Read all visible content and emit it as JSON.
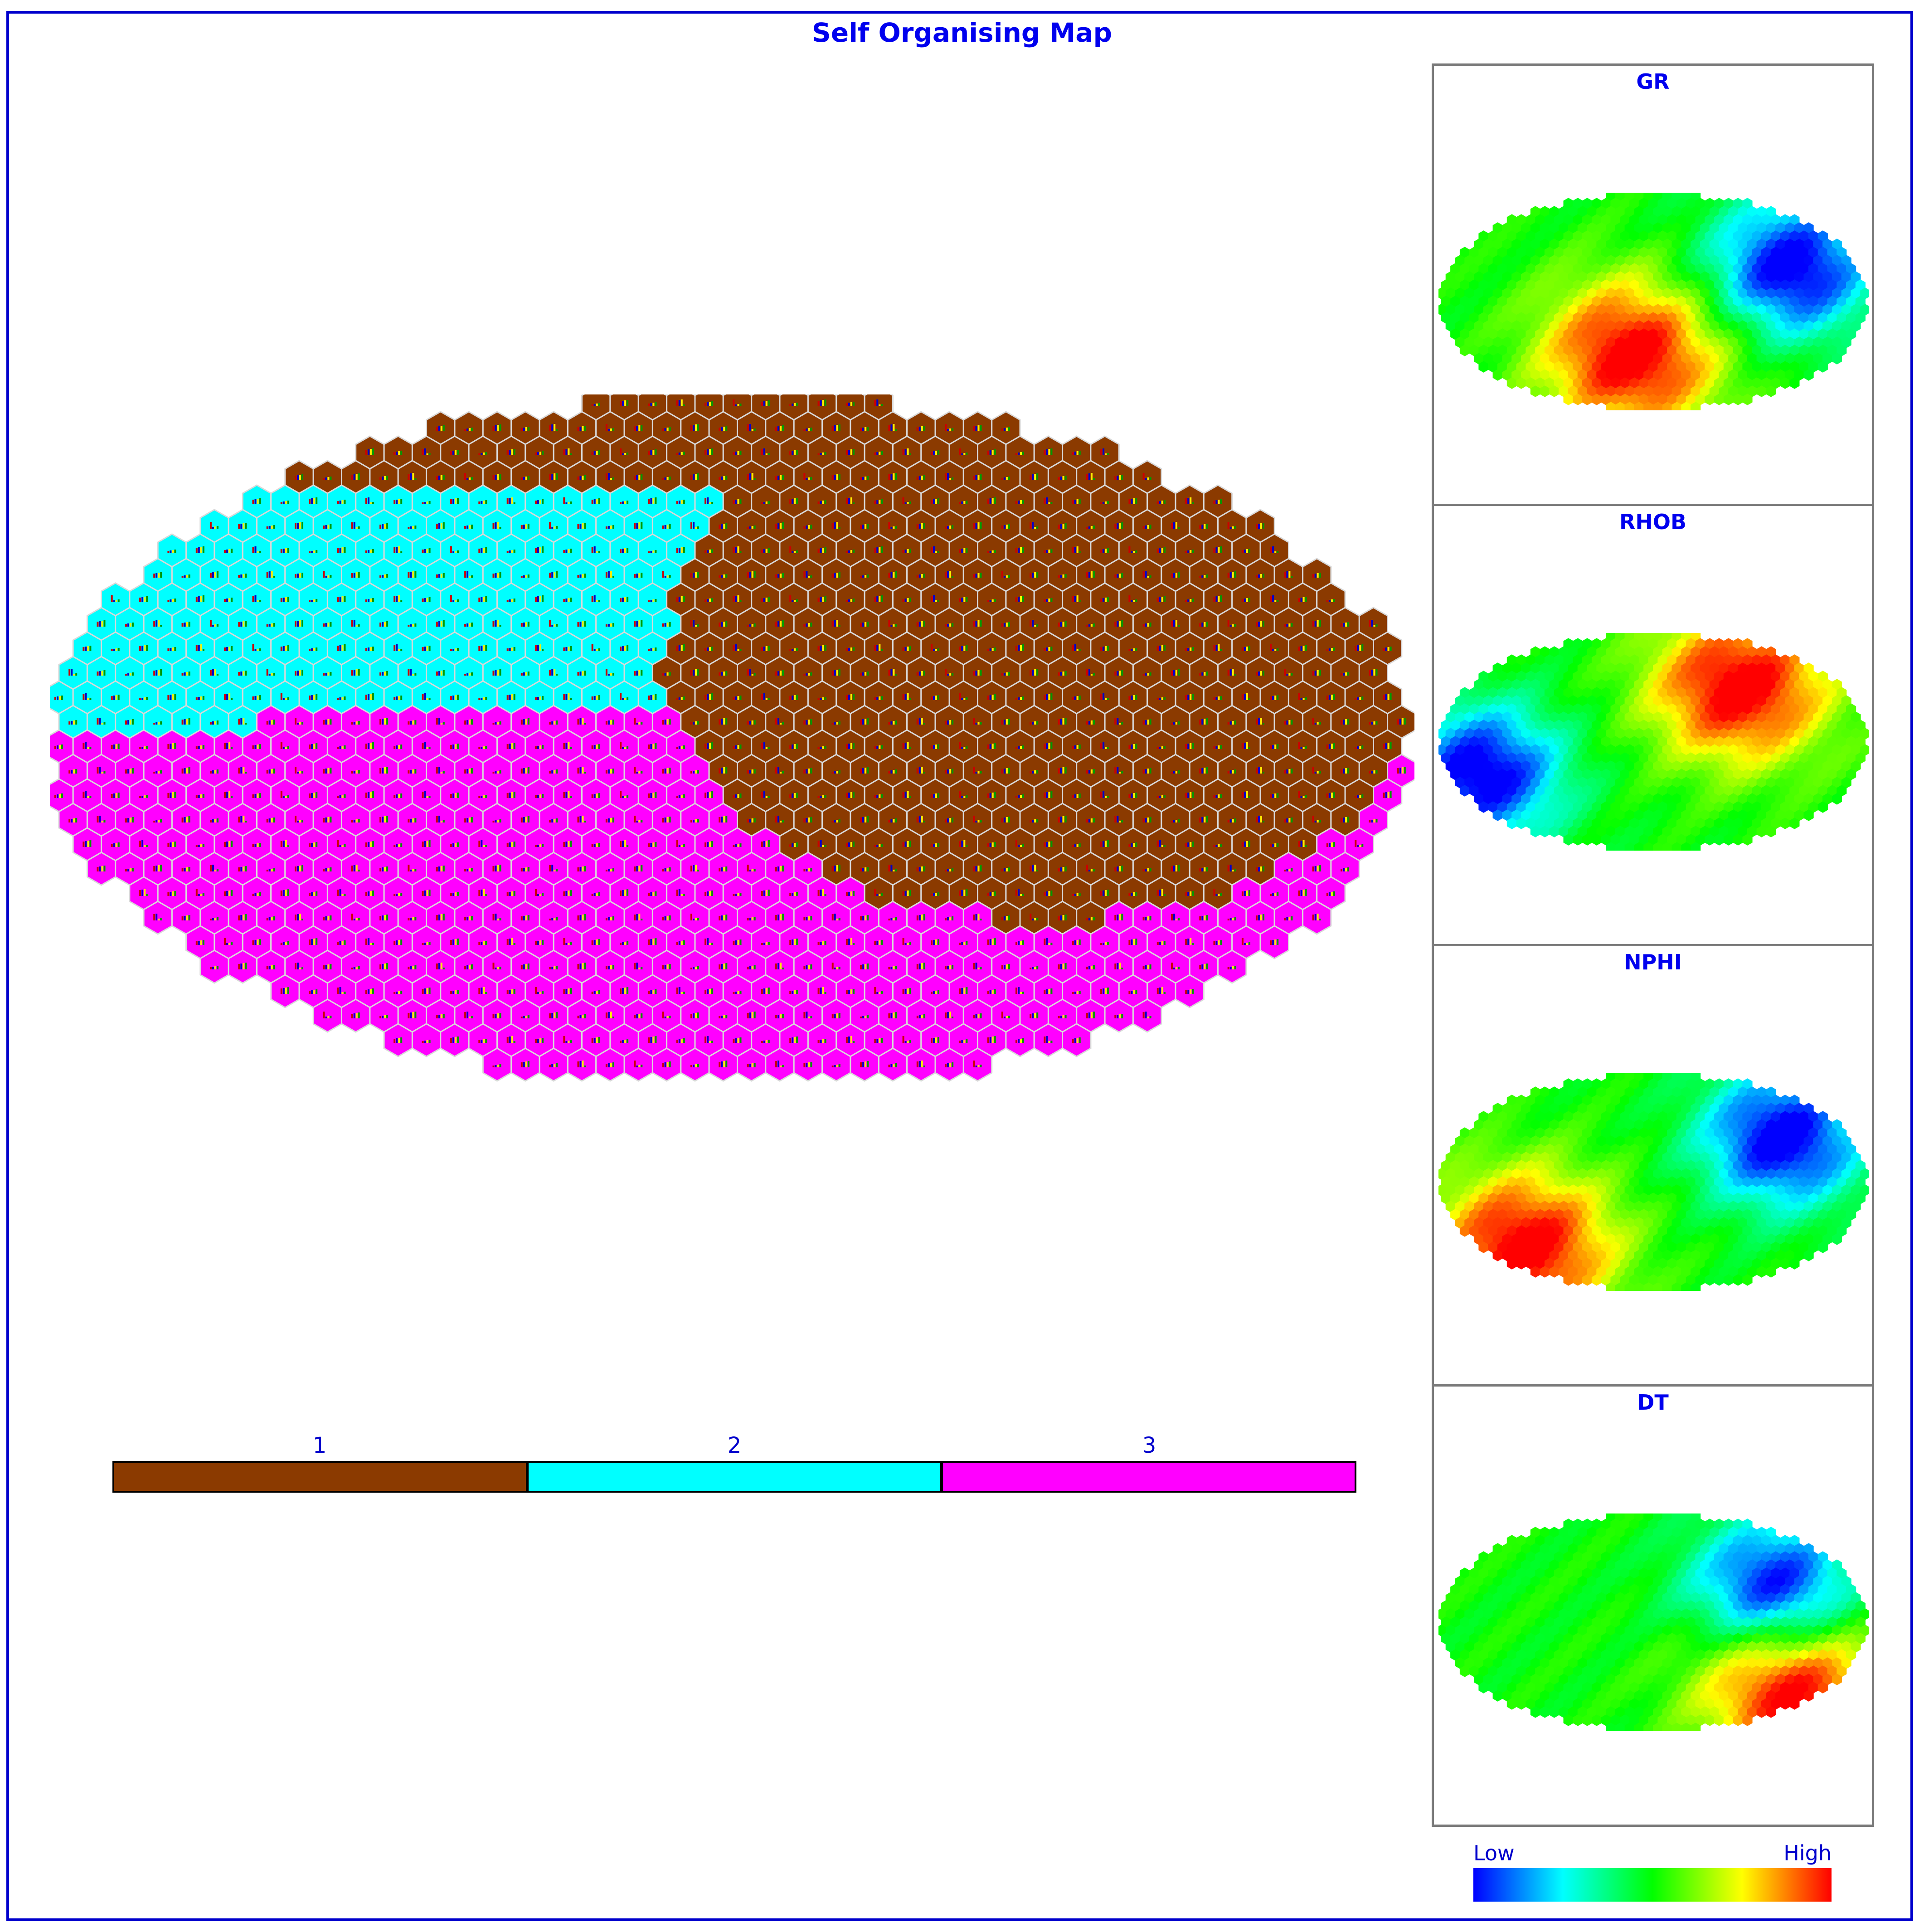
{
  "title": "Self Organising Map",
  "chart_data": {
    "type": "heatmap",
    "title": "Self Organising Map",
    "main_map": {
      "kind": "cluster-map",
      "clusters": [
        {
          "label": "1",
          "color": "#8b3a00"
        },
        {
          "label": "2",
          "color": "#00ffff"
        },
        {
          "label": "3",
          "color": "#ff00ff"
        }
      ]
    },
    "component_planes": [
      {
        "name": "GR",
        "high_center": [
          0.45,
          0.75
        ],
        "low_center": [
          0.82,
          0.35
        ]
      },
      {
        "name": "RHOB",
        "high_center": [
          0.7,
          0.25
        ],
        "low_center": [
          0.1,
          0.65
        ]
      },
      {
        "name": "NPHI",
        "high_center": [
          0.2,
          0.8
        ],
        "low_center": [
          0.8,
          0.3
        ]
      },
      {
        "name": "DT",
        "high_center": [
          0.82,
          0.8
        ],
        "low_center": [
          0.78,
          0.35
        ]
      }
    ],
    "colorbar": {
      "low_label": "Low",
      "high_label": "High",
      "colors": [
        "#0000ff",
        "#00ffff",
        "#00ff00",
        "#ffff00",
        "#ff0000"
      ]
    }
  }
}
